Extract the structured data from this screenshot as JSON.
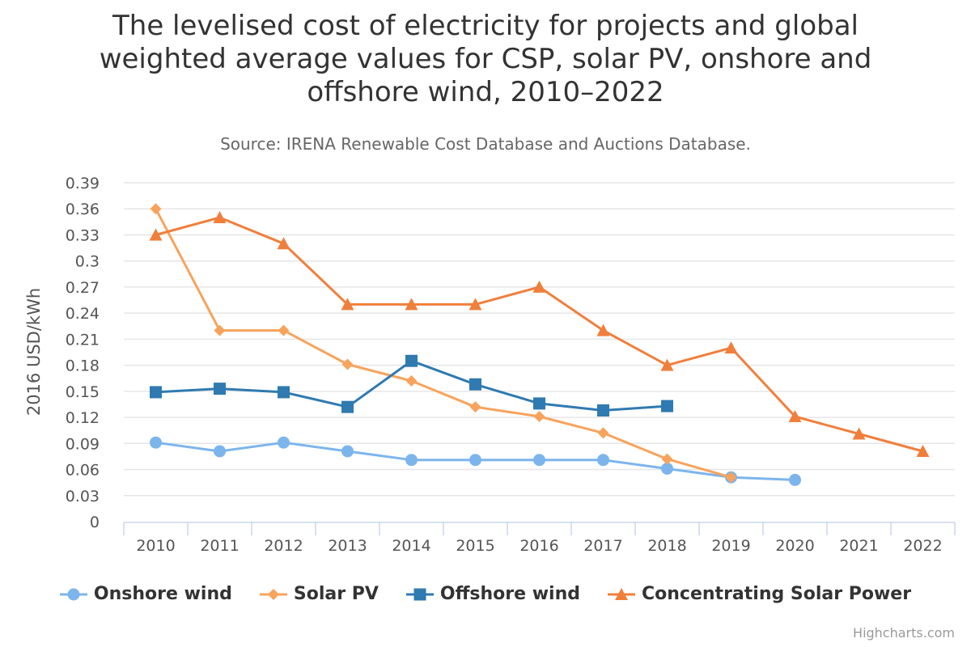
{
  "chart_data": {
    "type": "line",
    "title": "The levelised cost of electricity for projects and global weighted average values for CSP, solar PV, onshore and offshore wind, 2010–2022",
    "subtitle": "Source: IRENA Renewable Cost Database and Auctions Database.",
    "ylabel": "2016 USD/kWh",
    "xlabel": "",
    "categories": [
      "2010",
      "2011",
      "2012",
      "2013",
      "2014",
      "2015",
      "2016",
      "2017",
      "2018",
      "2019",
      "2020",
      "2021",
      "2022"
    ],
    "y_ticks": [
      "0",
      "0.03",
      "0.06",
      "0.09",
      "0.12",
      "0.15",
      "0.18",
      "0.21",
      "0.24",
      "0.27",
      "0.3",
      "0.33",
      "0.36",
      "0.39"
    ],
    "ylim": [
      0,
      0.39
    ],
    "grid": true,
    "legend_position": "bottom",
    "series": [
      {
        "name": "Onshore wind",
        "color": "#7cb5ec",
        "marker": "circle",
        "values": [
          0.091,
          0.081,
          0.091,
          0.081,
          0.071,
          0.071,
          0.071,
          0.071,
          0.061,
          0.051,
          0.048,
          null,
          null
        ]
      },
      {
        "name": "Solar PV",
        "color": "#f7a35c",
        "marker": "diamond",
        "values": [
          0.36,
          0.22,
          0.22,
          0.181,
          0.162,
          0.132,
          0.121,
          0.102,
          0.072,
          0.051,
          null,
          null,
          null
        ]
      },
      {
        "name": "Offshore wind",
        "color": "#2f7ab0",
        "marker": "square",
        "values": [
          0.149,
          0.153,
          0.149,
          0.132,
          0.185,
          0.158,
          0.136,
          0.128,
          0.133,
          null,
          null,
          null,
          null
        ]
      },
      {
        "name": "Concentrating Solar Power",
        "color": "#f07f3c",
        "marker": "triangle",
        "values": [
          0.33,
          0.35,
          0.32,
          0.25,
          0.25,
          0.25,
          0.27,
          0.22,
          0.18,
          0.2,
          0.121,
          0.101,
          0.081
        ]
      }
    ]
  },
  "credits": "Highcharts.com"
}
